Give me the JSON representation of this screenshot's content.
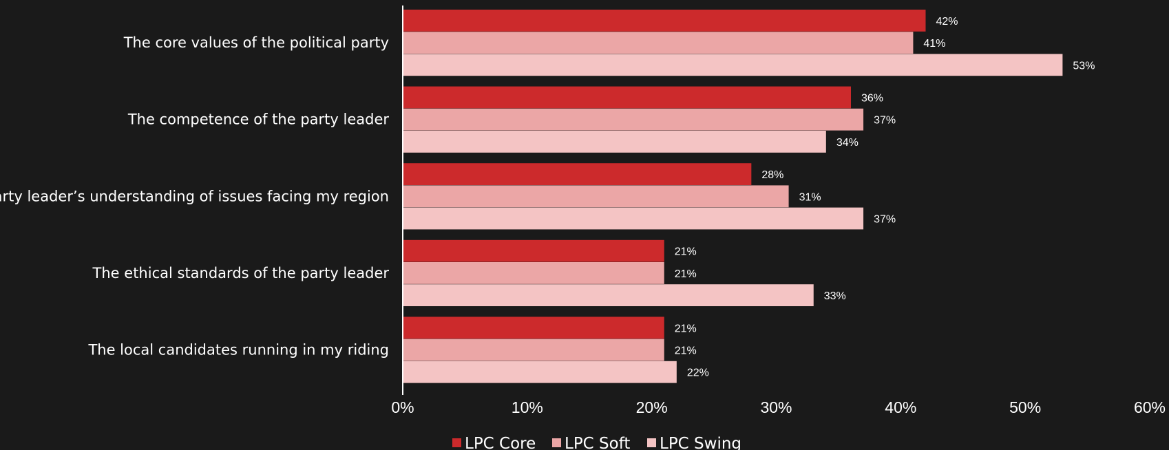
{
  "chart_data": {
    "type": "bar",
    "orientation": "horizontal",
    "categories": [
      "The core values of the political party",
      "The competence of the party leader",
      "The party leader’s understanding of issues facing my region",
      "The ethical standards of the party leader",
      "The local candidates running in my riding"
    ],
    "series": [
      {
        "name": "LPC Core",
        "color": "#cc2a2c",
        "values": [
          42,
          36,
          28,
          21,
          21
        ],
        "labels": [
          "42%",
          "36%",
          "28%",
          "21%",
          "21%"
        ]
      },
      {
        "name": "LPC Soft",
        "color": "#eba6a6",
        "values": [
          41,
          37,
          31,
          21,
          21
        ],
        "labels": [
          "41%",
          "37%",
          "31%",
          "21%",
          "21%"
        ]
      },
      {
        "name": "LPC Swing",
        "color": "#f4c4c4",
        "values": [
          53,
          34,
          37,
          33,
          22
        ],
        "labels": [
          "53%",
          "34%",
          "37%",
          "33%",
          "22%"
        ]
      }
    ],
    "xlim": [
      0,
      60
    ],
    "xticks": [
      "0%",
      "10%",
      "20%",
      "30%",
      "40%",
      "50%",
      "60%"
    ],
    "legend_position": "bottom",
    "grid": false
  }
}
